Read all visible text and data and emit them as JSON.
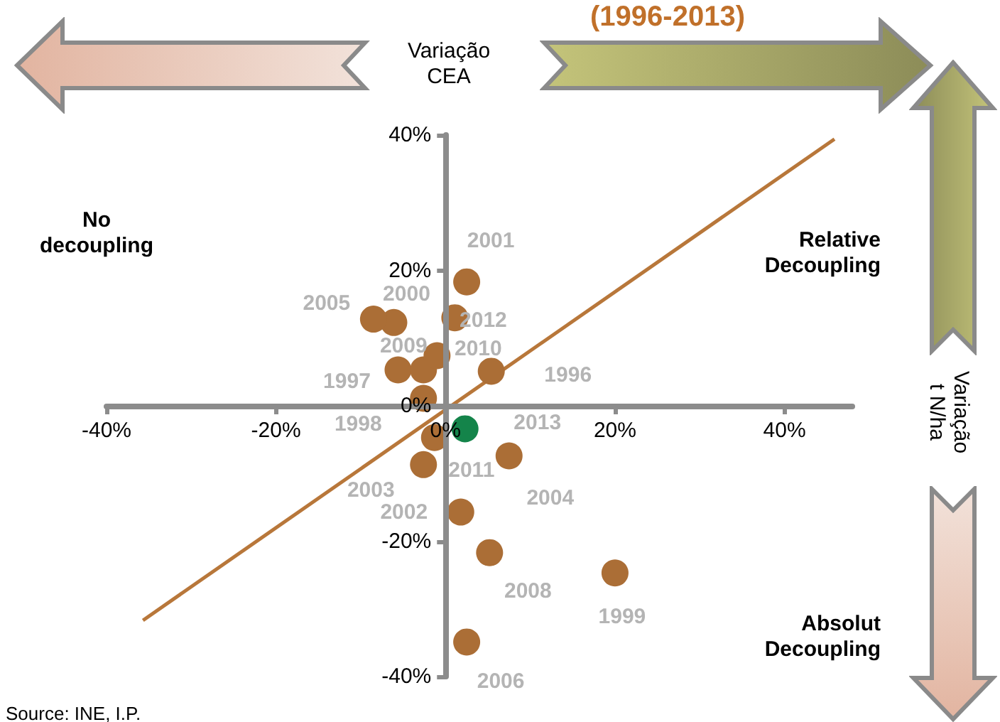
{
  "chart_data": {
    "type": "scatter",
    "title": "(1996-2013)",
    "xlabel": "Variação\nCEA",
    "ylabel": "Variação\nt N/ha",
    "annotations": [
      "No\ndecoupling",
      "Relative\nDecoupling",
      "Absolut\nDecoupling",
      "Source: INE, I.P.",
      {
        "text": "1996",
        "x": 5.4,
        "y": 5.1
      },
      {
        "text": "1997",
        "x": -5.6,
        "y": 5.3
      },
      {
        "text": "1998",
        "x": -2.6,
        "y": 1.1
      },
      {
        "text": "1999",
        "x": 20.0,
        "y": -24.7
      },
      {
        "text": "2000",
        "x": -6.1,
        "y": 12.3
      },
      {
        "text": "2001",
        "x": 2.5,
        "y": 18.3
      },
      {
        "text": "2002",
        "x": 1.8,
        "y": -15.7
      },
      {
        "text": "2003",
        "x": -2.6,
        "y": -8.7
      },
      {
        "text": "2004",
        "x": 7.5,
        "y": -7.4
      },
      {
        "text": "2005",
        "x": -8.5,
        "y": 12.8
      },
      {
        "text": "2006",
        "x": 2.5,
        "y": -34.9
      },
      {
        "text": "2008",
        "x": 5.2,
        "y": -21.7
      },
      {
        "text": "2009",
        "x": -2.6,
        "y": 5.3
      },
      {
        "text": "2010",
        "x": -1.0,
        "y": 7.4
      },
      {
        "text": "2011",
        "x": -1.3,
        "y": -4.7
      },
      {
        "text": "2012",
        "x": 1.1,
        "y": 13.0
      },
      {
        "text": "2013",
        "x": 2.3,
        "y": -3.4
      }
    ],
    "xlim": [
      -40,
      48
    ],
    "xticks": [
      {
        "value": -40,
        "label": "-40%"
      },
      {
        "value": -20,
        "label": "-20%"
      },
      {
        "value": 0,
        "label": "0%"
      },
      {
        "value": 20,
        "label": "20%"
      },
      {
        "value": 40,
        "label": "40%"
      }
    ],
    "ylim": [
      -40,
      40
    ],
    "yticks": [
      {
        "value": -40,
        "label": "-40%"
      },
      {
        "value": -20,
        "label": "-20%"
      },
      {
        "value": 0,
        "label": "0%"
      },
      {
        "value": 20,
        "label": "20%"
      },
      {
        "value": 40,
        "label": "40%"
      }
    ],
    "marker": "circle",
    "series": [
      {
        "color": "#ab6e36",
        "x": [
          5.4,
          -5.6,
          -2.6,
          20.0,
          -6.1,
          2.5,
          1.8,
          -2.6,
          7.5,
          -8.5,
          2.5,
          5.2,
          -2.6,
          -1.0,
          -1.3,
          1.1
        ],
        "values": [
          5.1,
          5.3,
          1.1,
          -24.7,
          12.3,
          18.3,
          -15.7,
          -8.7,
          -7.4,
          12.8,
          -34.9,
          -21.7,
          5.3,
          7.4,
          -4.7,
          13.0
        ]
      },
      {
        "color": "#14844a",
        "x": [
          2.3
        ],
        "values": [
          -3.4
        ]
      },
      {
        "type": "line",
        "color": "#b8773a",
        "marker": "none",
        "x": [
          -35.7,
          45.9
        ],
        "values": [
          -31.7,
          39.4
        ]
      }
    ]
  }
}
